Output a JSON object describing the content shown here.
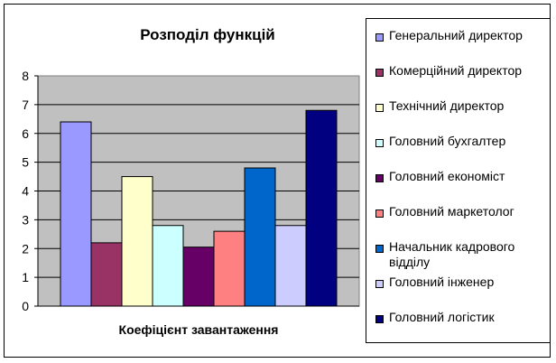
{
  "chart_data": {
    "type": "bar",
    "title": "Розподіл функцій",
    "xlabel": "Коефіцієнт завантаження",
    "ylabel": "",
    "ylim": [
      0,
      8
    ],
    "yticks": [
      "0",
      "1",
      "2",
      "3",
      "4",
      "5",
      "6",
      "7",
      "8"
    ],
    "grid": true,
    "legend_position": "right",
    "plot_background": "#c0c0c0",
    "series": [
      {
        "name": "Генеральний директор",
        "value": 6.4,
        "color": "#9999ff"
      },
      {
        "name": "Комерційний директор",
        "value": 2.2,
        "color": "#993366"
      },
      {
        "name": "Технічний директор",
        "value": 4.5,
        "color": "#ffffcc"
      },
      {
        "name": "Головний бухгалтер",
        "value": 2.8,
        "color": "#ccffff"
      },
      {
        "name": "Головний економіст",
        "value": 2.05,
        "color": "#660066"
      },
      {
        "name": "Головний маркетолог",
        "value": 2.6,
        "color": "#ff8080"
      },
      {
        "name": "Начальник кадрового відділу",
        "value": 4.8,
        "color": "#0066cc"
      },
      {
        "name": "Головний інженер",
        "value": 2.8,
        "color": "#ccccff"
      },
      {
        "name": "Головний логістик",
        "value": 6.8,
        "color": "#000080"
      }
    ]
  }
}
